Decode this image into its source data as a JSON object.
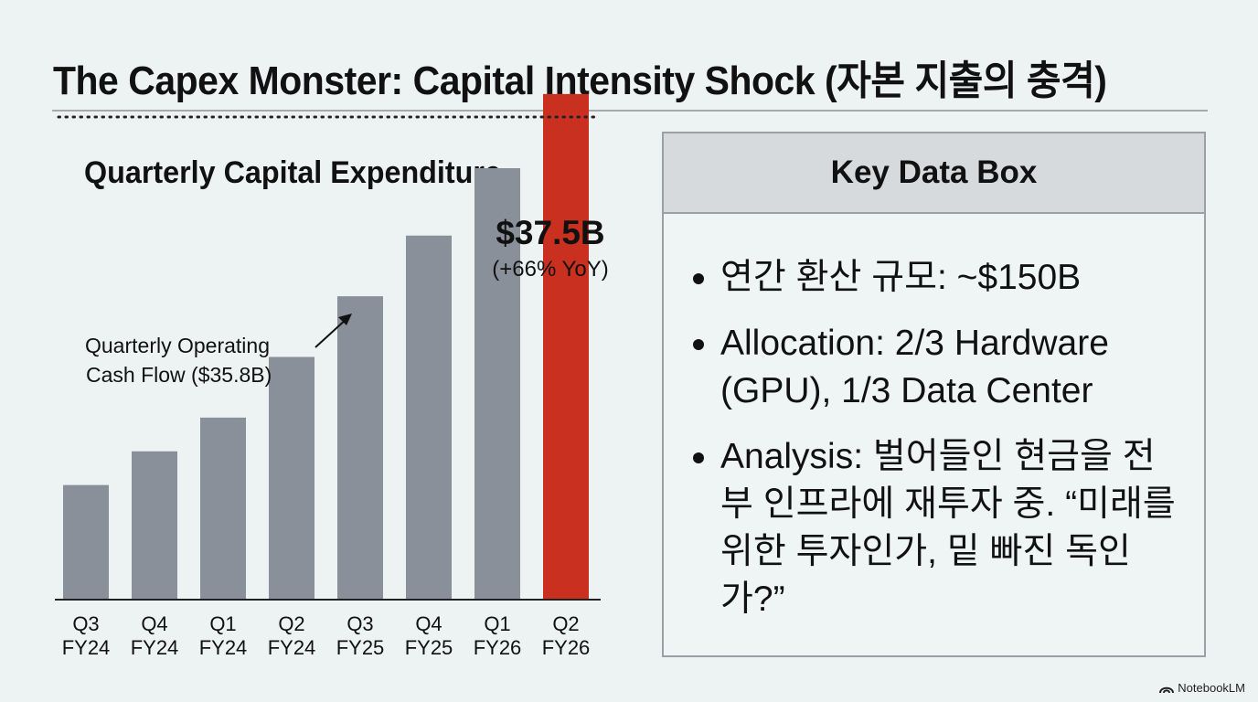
{
  "title": "The Capex Monster: Capital Intensity Shock (자본 지출의 충격)",
  "chart_data": {
    "type": "bar",
    "title": "Quarterly Capital Expenditure",
    "categories": [
      [
        "Q3",
        "FY24"
      ],
      [
        "Q4",
        "FY24"
      ],
      [
        "Q1",
        "FY24"
      ],
      [
        "Q2",
        "FY24"
      ],
      [
        "Q3",
        "FY25"
      ],
      [
        "Q4",
        "FY25"
      ],
      [
        "Q1",
        "FY26"
      ],
      [
        "Q2",
        "FY26"
      ]
    ],
    "values": [
      8.5,
      11.0,
      13.5,
      18.0,
      22.5,
      27.0,
      32.0,
      37.5
    ],
    "ylim": [
      0,
      40
    ],
    "xlabel": "",
    "ylabel": "",
    "bar_color": "#8a9099",
    "highlight_color": "#c9301f",
    "highlight_index": 7,
    "highlight_label": "$37.5B",
    "highlight_sublabel": "(+66% YoY)",
    "reference_line": {
      "value": 35.8,
      "label_line1": "Quarterly Operating",
      "label_line2": "Cash Flow ($35.8B)"
    }
  },
  "data_box": {
    "title": "Key Data Box",
    "items": [
      "연간 환산 규모: ~$150B",
      "Allocation: 2/3 Hardware (GPU), 1/3 Data Center",
      "Analysis: 벌어들인 현금을 전부 인프라에 재투자 중. “미래를 위한 투자인가, 밑 빠진 독인가?”"
    ]
  },
  "brand": {
    "name": "NotebookLM",
    "icon": "notebooklm-logo-icon"
  }
}
